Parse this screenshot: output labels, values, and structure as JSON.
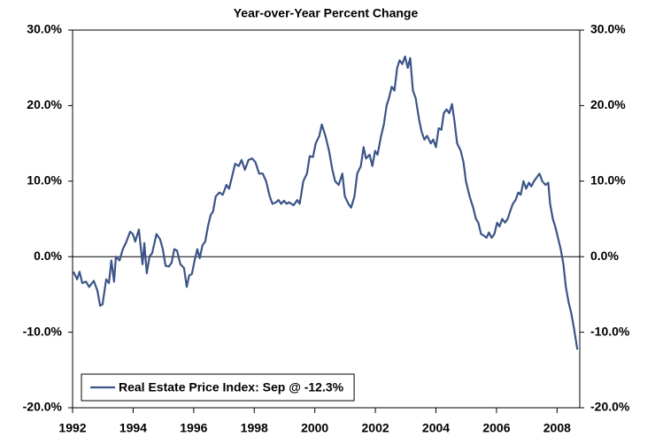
{
  "chart_data": {
    "type": "line",
    "title": "Year-over-Year Percent Change",
    "xlim": [
      1992,
      2008.75
    ],
    "xticks": [
      1992,
      1994,
      1996,
      1998,
      2000,
      2002,
      2004,
      2006,
      2008
    ],
    "ylim": [
      -20,
      30
    ],
    "yticks": [
      {
        "value": -20,
        "label": "-20.0%"
      },
      {
        "value": -10,
        "label": "-10.0%"
      },
      {
        "value": 0,
        "label": "0.0%"
      },
      {
        "value": 10,
        "label": "10.0%"
      },
      {
        "value": 20,
        "label": "20.0%"
      },
      {
        "value": 30,
        "label": "30.0%"
      }
    ],
    "legend": "lower left",
    "series": [
      {
        "name": "Real Estate Price Index: Sep @ -12.3%",
        "color": "#3b5488",
        "x": [
          1992.03,
          1992.15,
          1992.23,
          1992.32,
          1992.44,
          1992.55,
          1992.7,
          1992.82,
          1992.91,
          1992.99,
          1993.11,
          1993.2,
          1993.28,
          1993.37,
          1993.43,
          1993.55,
          1993.66,
          1993.78,
          1993.9,
          1993.99,
          1994.07,
          1994.19,
          1994.31,
          1994.37,
          1994.45,
          1994.54,
          1994.63,
          1994.77,
          1994.89,
          1994.98,
          1995.07,
          1995.18,
          1995.27,
          1995.36,
          1995.45,
          1995.56,
          1995.68,
          1995.77,
          1995.85,
          1995.94,
          1996.03,
          1996.12,
          1996.2,
          1996.29,
          1996.38,
          1996.47,
          1996.56,
          1996.64,
          1996.73,
          1996.85,
          1996.96,
          1997.08,
          1997.17,
          1997.29,
          1997.37,
          1997.49,
          1997.58,
          1997.69,
          1997.81,
          1997.93,
          1998.04,
          1998.16,
          1998.28,
          1998.39,
          1998.51,
          1998.6,
          1998.72,
          1998.8,
          1998.89,
          1998.98,
          1999.07,
          1999.15,
          1999.3,
          1999.42,
          1999.5,
          1999.62,
          1999.74,
          1999.83,
          1999.94,
          2000.03,
          2000.15,
          2000.23,
          2000.35,
          2000.47,
          2000.58,
          2000.67,
          2000.79,
          2000.91,
          2000.99,
          2001.11,
          2001.2,
          2001.31,
          2001.4,
          2001.52,
          2001.61,
          2001.69,
          2001.81,
          2001.9,
          2001.99,
          2002.07,
          2002.19,
          2002.28,
          2002.37,
          2002.45,
          2002.54,
          2002.63,
          2002.72,
          2002.8,
          2002.89,
          2002.98,
          2003.07,
          2003.15,
          2003.24,
          2003.33,
          2003.45,
          2003.53,
          2003.62,
          2003.71,
          2003.83,
          2003.91,
          2004.0,
          2004.09,
          2004.18,
          2004.26,
          2004.35,
          2004.44,
          2004.53,
          2004.61,
          2004.7,
          2004.82,
          2004.91,
          2004.99,
          2005.11,
          2005.23,
          2005.32,
          2005.4,
          2005.49,
          2005.58,
          2005.67,
          2005.75,
          2005.84,
          2005.93,
          2006.02,
          2006.1,
          2006.19,
          2006.28,
          2006.37,
          2006.45,
          2006.54,
          2006.63,
          2006.72,
          2006.8,
          2006.89,
          2006.98,
          2007.07,
          2007.15,
          2007.24,
          2007.33,
          2007.42,
          2007.51,
          2007.62,
          2007.71,
          2007.77,
          2007.86,
          2007.94,
          2008.03,
          2008.12,
          2008.21,
          2008.29,
          2008.38,
          2008.47,
          2008.56,
          2008.67
        ],
        "values": [
          -2,
          -3,
          -2,
          -3.5,
          -3.3,
          -4,
          -3.2,
          -4.5,
          -6.5,
          -6.3,
          -3,
          -3.5,
          -0.5,
          -3.3,
          0,
          -0.5,
          1,
          2,
          3.3,
          3,
          2,
          3.6,
          -1,
          1.8,
          -2.2,
          0,
          0.5,
          3,
          2.3,
          1,
          -1.2,
          -1.3,
          -0.8,
          1,
          0.8,
          -1,
          -1.5,
          -4,
          -2.5,
          -2.3,
          -0.5,
          1,
          -0.2,
          1.5,
          2,
          4,
          5.5,
          6,
          8,
          8.5,
          8.2,
          9.5,
          9,
          11,
          12.3,
          12,
          12.8,
          11.5,
          12.8,
          13,
          12.5,
          11,
          11,
          10,
          8,
          7,
          7.2,
          7.5,
          7,
          7.4,
          7,
          7.2,
          6.8,
          7.5,
          7,
          10,
          11,
          13.3,
          13.2,
          15,
          16,
          17.5,
          16,
          14,
          11.5,
          10,
          9.5,
          11,
          8,
          7,
          6.5,
          8,
          11,
          12,
          14.5,
          13,
          13.5,
          12,
          14,
          13.5,
          16,
          17.5,
          20,
          21,
          22.5,
          22,
          25,
          26,
          25.5,
          26.5,
          25,
          26.3,
          22,
          21,
          18,
          16.5,
          15.5,
          16,
          15,
          15.5,
          14.5,
          17,
          16.8,
          19,
          19.5,
          19,
          20.2,
          18,
          15,
          14,
          12.5,
          10,
          8,
          6.5,
          5,
          4.5,
          3,
          2.8,
          2.5,
          3.2,
          2.5,
          3,
          4.5,
          4,
          5,
          4.5,
          5,
          6,
          7,
          7.5,
          8.5,
          8.2,
          10,
          9,
          9.8,
          9.3,
          10,
          10.5,
          11,
          10,
          9.5,
          9.8,
          7,
          5,
          4,
          2.5,
          1,
          -1,
          -4,
          -6,
          -7.5,
          -9.5,
          -12.3
        ]
      }
    ]
  }
}
